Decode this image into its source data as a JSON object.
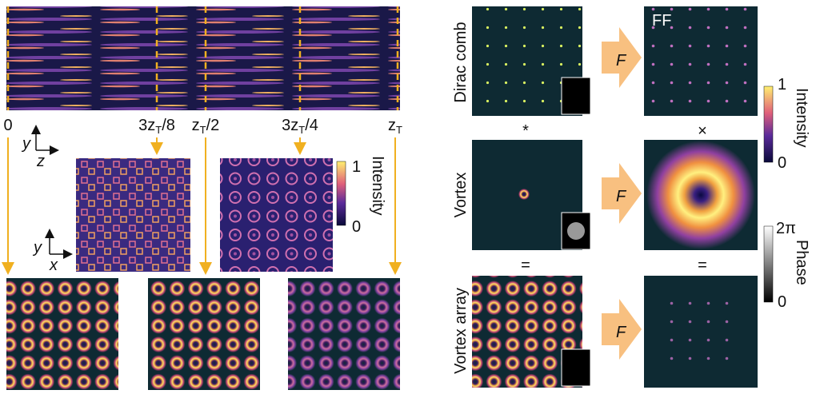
{
  "carpet": {
    "labels": [
      {
        "main": "0"
      },
      {
        "main": "3z",
        "sub": "T",
        "tail": "/8"
      },
      {
        "main": "z",
        "sub": "T",
        "tail": "/2"
      },
      {
        "main": "3z",
        "sub": "T",
        "tail": "/4"
      },
      {
        "main": "z",
        "sub": "T"
      }
    ]
  },
  "axes_top": {
    "vertical": "y",
    "horizontal": "z"
  },
  "axes_mid": {
    "vertical": "y",
    "horizontal": "x"
  },
  "colorbar_left": {
    "max": "1",
    "min": "0",
    "label": "Intensity"
  },
  "rows": [
    {
      "label": "Dirac comb"
    },
    {
      "label": "Vortex"
    },
    {
      "label": "Vortex array"
    }
  ],
  "transform_symbol": "F",
  "ff_label": "FF",
  "operators": {
    "left": [
      "*",
      "="
    ],
    "right": [
      "×",
      "="
    ]
  },
  "colorbar_intensity": {
    "max": "1",
    "min": "0",
    "label": "Intensity"
  },
  "colorbar_phase": {
    "max": "2π",
    "min": "0",
    "label": "Phase"
  }
}
